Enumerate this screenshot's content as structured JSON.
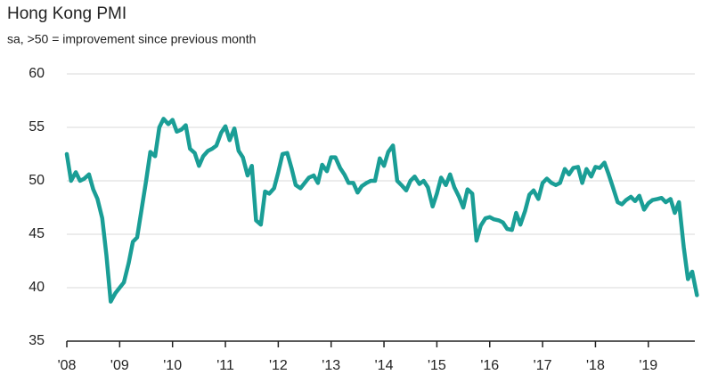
{
  "chart_data": {
    "type": "line",
    "title": "Hong Kong PMI",
    "subtitle": "sa, >50 = improvement since previous month",
    "x": [
      2008,
      2008.08,
      2008.17,
      2008.25,
      2008.33,
      2008.42,
      2008.5,
      2008.58,
      2008.67,
      2008.75,
      2008.83,
      2008.92,
      2009,
      2009.08,
      2009.17,
      2009.25,
      2009.33,
      2009.42,
      2009.5,
      2009.58,
      2009.67,
      2009.75,
      2009.83,
      2009.92,
      2010,
      2010.08,
      2010.17,
      2010.25,
      2010.33,
      2010.42,
      2010.5,
      2010.58,
      2010.67,
      2010.75,
      2010.83,
      2010.92,
      2011,
      2011.08,
      2011.17,
      2011.25,
      2011.33,
      2011.42,
      2011.5,
      2011.58,
      2011.67,
      2011.75,
      2011.83,
      2011.92,
      2012,
      2012.08,
      2012.17,
      2012.25,
      2012.33,
      2012.42,
      2012.5,
      2012.58,
      2012.67,
      2012.75,
      2012.83,
      2012.92,
      2013,
      2013.08,
      2013.17,
      2013.25,
      2013.33,
      2013.42,
      2013.5,
      2013.58,
      2013.67,
      2013.75,
      2013.83,
      2013.92,
      2014,
      2014.08,
      2014.17,
      2014.25,
      2014.33,
      2014.42,
      2014.5,
      2014.58,
      2014.67,
      2014.75,
      2014.83,
      2014.92,
      2015,
      2015.08,
      2015.17,
      2015.25,
      2015.33,
      2015.42,
      2015.5,
      2015.58,
      2015.67,
      2015.75,
      2015.83,
      2015.92,
      2016,
      2016.08,
      2016.17,
      2016.25,
      2016.33,
      2016.42,
      2016.5,
      2016.58,
      2016.67,
      2016.75,
      2016.83,
      2016.92,
      2017,
      2017.08,
      2017.17,
      2017.25,
      2017.33,
      2017.42,
      2017.5,
      2017.58,
      2017.67,
      2017.75,
      2017.83,
      2017.92,
      2018,
      2018.08,
      2018.17,
      2018.25,
      2018.33,
      2018.42,
      2018.5,
      2018.58,
      2018.67,
      2018.75,
      2018.83,
      2018.92,
      2019,
      2019.08,
      2019.17,
      2019.25,
      2019.33,
      2019.42,
      2019.5,
      2019.58,
      2019.67,
      2019.75,
      2019.83,
      2019.92
    ],
    "series": [
      {
        "color": "#1a9e96",
        "values": [
          52.5,
          50,
          50.8,
          50,
          50.2,
          50.6,
          49.2,
          48.3,
          46.5,
          43,
          38.7,
          39.5,
          40,
          40.5,
          42.3,
          44.3,
          44.7,
          47.5,
          50,
          52.7,
          52.3,
          55,
          55.8,
          55.3,
          55.7,
          54.6,
          54.8,
          55.2,
          53,
          52.6,
          51.4,
          52.3,
          52.8,
          53,
          53.3,
          54.5,
          55.1,
          53.8,
          54.9,
          52.8,
          52.2,
          50.5,
          51.4,
          46.3,
          45.9,
          49,
          48.8,
          49.3,
          50.8,
          52.5,
          52.6,
          51.2,
          49.6,
          49.3,
          49.8,
          50.3,
          50.5,
          49.8,
          51.5,
          50.9,
          52.2,
          52.2,
          51.2,
          50.6,
          49.8,
          49.8,
          48.9,
          49.5,
          49.8,
          50,
          50,
          52.1,
          51.4,
          52.7,
          53.3,
          50,
          49.6,
          49.1,
          50,
          50.4,
          49.7,
          50,
          49.4,
          47.6,
          48.8,
          50.3,
          49.6,
          50.6,
          49.4,
          48.5,
          47.5,
          49.2,
          48.8,
          44.4,
          45.8,
          46.5,
          46.6,
          46.4,
          46.3,
          46.1,
          45.5,
          45.4,
          47,
          45.9,
          47.2,
          48.7,
          49.1,
          48.3,
          49.8,
          50.2,
          49.8,
          49.6,
          49.8,
          51.1,
          50.6,
          51.2,
          51.3,
          49.8,
          51.1,
          50.4,
          51.3,
          51.2,
          51.7,
          50.6,
          49.4,
          48,
          47.8,
          48.2,
          48.5,
          48.1,
          48.6,
          47.3,
          47.9,
          48.2,
          48.3,
          48.4,
          48,
          48.3,
          47,
          48,
          43.8,
          40.8,
          41.5,
          39.3
        ]
      }
    ],
    "xlim": [
      2008,
      2019.88
    ],
    "xticks": [
      {
        "value": 2008,
        "label": "'08"
      },
      {
        "value": 2009,
        "label": "'09"
      },
      {
        "value": 2010,
        "label": "'10"
      },
      {
        "value": 2011,
        "label": "'11"
      },
      {
        "value": 2012,
        "label": "'12"
      },
      {
        "value": 2013,
        "label": "'13"
      },
      {
        "value": 2014,
        "label": "'14"
      },
      {
        "value": 2015,
        "label": "'15"
      },
      {
        "value": 2016,
        "label": "'16"
      },
      {
        "value": 2017,
        "label": "'17"
      },
      {
        "value": 2018,
        "label": "'18"
      },
      {
        "value": 2019,
        "label": "'19"
      }
    ],
    "ylim": [
      35,
      60
    ],
    "yticks": [
      35,
      40,
      45,
      50,
      55,
      60
    ],
    "grid": true
  }
}
